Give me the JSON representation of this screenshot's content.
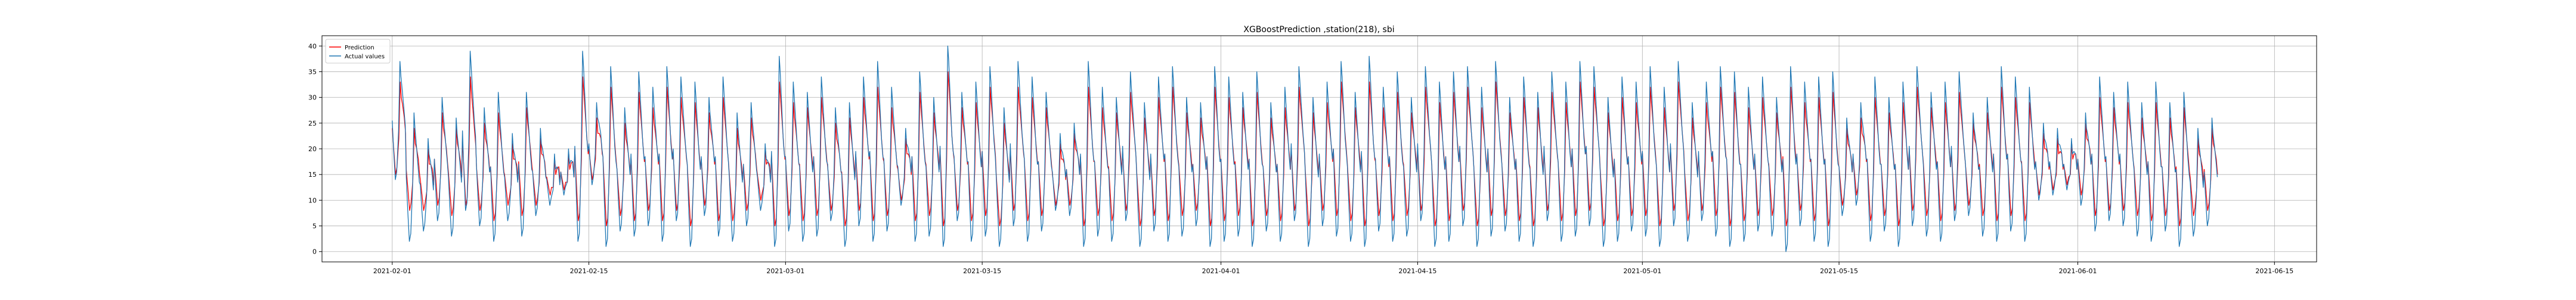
{
  "chart_data": {
    "type": "line",
    "title": "XGBoostPrediction ,station(218), sbi",
    "xlabel": "",
    "ylabel": "",
    "x_axis": {
      "kind": "date",
      "range": [
        "2021-01-27",
        "2021-06-18"
      ],
      "ticks": [
        "2021-02-01",
        "2021-02-15",
        "2021-03-01",
        "2021-03-15",
        "2021-04-01",
        "2021-04-15",
        "2021-05-01",
        "2021-05-15",
        "2021-06-01",
        "2021-06-15"
      ]
    },
    "y_axis": {
      "range": [
        -2,
        42
      ],
      "ticks": [
        0,
        5,
        10,
        15,
        20,
        25,
        30,
        35,
        40
      ]
    },
    "grid": true,
    "legend": {
      "placement": "top-left",
      "entries": [
        {
          "label": "Prediction",
          "color": "#ff0000"
        },
        {
          "label": "Actual values",
          "color": "#1f77b4"
        }
      ]
    },
    "data_start": "2021-02-01",
    "data_end": "2021-06-10",
    "series": [
      {
        "name": "Actual values",
        "color": "#1f77b4",
        "x": [
          "2021-02-01",
          "2021-02-02",
          "2021-02-03",
          "2021-02-04",
          "2021-02-05",
          "2021-02-06",
          "2021-02-07",
          "2021-02-08",
          "2021-02-09",
          "2021-02-10",
          "2021-02-11",
          "2021-02-12",
          "2021-02-13",
          "2021-02-14",
          "2021-02-15",
          "2021-02-16",
          "2021-02-17",
          "2021-02-18",
          "2021-02-19",
          "2021-02-20",
          "2021-02-21",
          "2021-02-22",
          "2021-02-23",
          "2021-02-24",
          "2021-02-25",
          "2021-02-26",
          "2021-02-27",
          "2021-02-28",
          "2021-03-01",
          "2021-03-02",
          "2021-03-03",
          "2021-03-04",
          "2021-03-05",
          "2021-03-06",
          "2021-03-07",
          "2021-03-08",
          "2021-03-09",
          "2021-03-10",
          "2021-03-11",
          "2021-03-12",
          "2021-03-13",
          "2021-03-14",
          "2021-03-15",
          "2021-03-16",
          "2021-03-17",
          "2021-03-18",
          "2021-03-19",
          "2021-03-20",
          "2021-03-21",
          "2021-03-22",
          "2021-03-23",
          "2021-03-24",
          "2021-03-25",
          "2021-03-26",
          "2021-03-27",
          "2021-03-28",
          "2021-03-29",
          "2021-03-30",
          "2021-03-31",
          "2021-04-01",
          "2021-04-02",
          "2021-04-03",
          "2021-04-04",
          "2021-04-05",
          "2021-04-06",
          "2021-04-07",
          "2021-04-08",
          "2021-04-09",
          "2021-04-10",
          "2021-04-11",
          "2021-04-12",
          "2021-04-13",
          "2021-04-14",
          "2021-04-15",
          "2021-04-16",
          "2021-04-17",
          "2021-04-18",
          "2021-04-19",
          "2021-04-20",
          "2021-04-21",
          "2021-04-22",
          "2021-04-23",
          "2021-04-24",
          "2021-04-25",
          "2021-04-26",
          "2021-04-27",
          "2021-04-28",
          "2021-04-29",
          "2021-04-30",
          "2021-05-01",
          "2021-05-02",
          "2021-05-03",
          "2021-05-04",
          "2021-05-05",
          "2021-05-06",
          "2021-05-07",
          "2021-05-08",
          "2021-05-09",
          "2021-05-10",
          "2021-05-11",
          "2021-05-12",
          "2021-05-13",
          "2021-05-14",
          "2021-05-15",
          "2021-05-16",
          "2021-05-17",
          "2021-05-18",
          "2021-05-19",
          "2021-05-20",
          "2021-05-21",
          "2021-05-22",
          "2021-05-23",
          "2021-05-24",
          "2021-05-25",
          "2021-05-26",
          "2021-05-27",
          "2021-05-28",
          "2021-05-29",
          "2021-05-30",
          "2021-05-31",
          "2021-06-01",
          "2021-06-02",
          "2021-06-03",
          "2021-06-04",
          "2021-06-05",
          "2021-06-06",
          "2021-06-07",
          "2021-06-08",
          "2021-06-09",
          "2021-06-10"
        ],
        "low": [
          14,
          2,
          4,
          6,
          3,
          8,
          5,
          2,
          6,
          3,
          7,
          9,
          11,
          2,
          13,
          1,
          4,
          3,
          5,
          2,
          6,
          1,
          7,
          3,
          2,
          5,
          8,
          1,
          4,
          2,
          3,
          6,
          1,
          5,
          2,
          4,
          9,
          2,
          3,
          1,
          6,
          2,
          3,
          1,
          5,
          2,
          4,
          8,
          7,
          1,
          3,
          2,
          6,
          1,
          4,
          2,
          3,
          5,
          1,
          2,
          3,
          1,
          4,
          2,
          6,
          1,
          5,
          3,
          2,
          1,
          4,
          2,
          3,
          6,
          1,
          2,
          5,
          1,
          3,
          4,
          2,
          1,
          6,
          2,
          3,
          5,
          1,
          2,
          4,
          3,
          1,
          5,
          2,
          6,
          3,
          1,
          2,
          4,
          3,
          0,
          5,
          2,
          1,
          7,
          9,
          2,
          4,
          1,
          5,
          3,
          2,
          6,
          7,
          3,
          2,
          4,
          2,
          10,
          11,
          12,
          9,
          4,
          6,
          5,
          3,
          2,
          4,
          1,
          3,
          5
        ],
        "high": [
          37,
          27,
          22,
          30,
          26,
          39,
          28,
          31,
          23,
          31,
          24,
          19,
          20,
          39,
          29,
          36,
          28,
          35,
          32,
          36,
          34,
          33,
          30,
          34,
          27,
          29,
          21,
          38,
          33,
          31,
          34,
          28,
          29,
          34,
          37,
          32,
          24,
          35,
          30,
          40,
          31,
          33,
          36,
          28,
          37,
          34,
          31,
          23,
          25,
          37,
          32,
          30,
          35,
          29,
          34,
          36,
          30,
          29,
          36,
          34,
          31,
          35,
          29,
          32,
          36,
          30,
          33,
          37,
          31,
          38,
          32,
          35,
          30,
          36,
          33,
          35,
          36,
          32,
          37,
          30,
          34,
          31,
          35,
          33,
          37,
          36,
          30,
          34,
          33,
          36,
          32,
          37,
          29,
          33,
          36,
          35,
          32,
          34,
          30,
          36,
          33,
          34,
          35,
          26,
          29,
          34,
          30,
          33,
          36,
          31,
          33,
          35,
          27,
          30,
          36,
          34,
          32,
          25,
          24,
          22,
          27,
          34,
          31,
          33,
          29,
          33,
          29,
          31,
          24,
          26
        ]
      },
      {
        "name": "Prediction",
        "color": "#ff0000",
        "low": [
          15,
          8,
          8,
          9,
          7,
          9,
          8,
          6,
          9,
          7,
          9,
          11,
          12,
          6,
          14,
          5,
          7,
          6,
          8,
          6,
          8,
          5,
          9,
          6,
          6,
          8,
          10,
          5,
          7,
          6,
          7,
          8,
          5,
          8,
          6,
          7,
          10,
          6,
          7,
          5,
          8,
          6,
          7,
          5,
          8,
          6,
          7,
          9,
          9,
          5,
          7,
          6,
          8,
          5,
          7,
          6,
          7,
          8,
          5,
          6,
          7,
          5,
          7,
          6,
          8,
          5,
          8,
          7,
          6,
          5,
          7,
          6,
          7,
          8,
          5,
          6,
          8,
          5,
          7,
          7,
          6,
          5,
          8,
          6,
          7,
          8,
          5,
          6,
          7,
          7,
          5,
          8,
          6,
          8,
          7,
          5,
          6,
          7,
          7,
          5,
          8,
          6,
          5,
          9,
          11,
          6,
          7,
          5,
          8,
          7,
          6,
          8,
          9,
          7,
          6,
          7,
          6,
          11,
          12,
          13,
          11,
          7,
          8,
          8,
          7,
          6,
          7,
          5,
          7,
          8
        ],
        "high": [
          33,
          24,
          20,
          27,
          24,
          34,
          25,
          27,
          21,
          28,
          22,
          18,
          19,
          34,
          26,
          32,
          25,
          31,
          28,
          32,
          30,
          29,
          27,
          30,
          24,
          26,
          20,
          33,
          29,
          28,
          30,
          25,
          26,
          30,
          32,
          28,
          22,
          31,
          27,
          35,
          28,
          29,
          32,
          25,
          32,
          30,
          28,
          21,
          23,
          32,
          28,
          27,
          31,
          26,
          30,
          32,
          27,
          26,
          32,
          30,
          28,
          31,
          26,
          28,
          32,
          27,
          29,
          33,
          28,
          33,
          28,
          31,
          27,
          32,
          29,
          31,
          32,
          28,
          33,
          27,
          30,
          28,
          31,
          29,
          33,
          32,
          27,
          30,
          29,
          32,
          28,
          33,
          26,
          29,
          32,
          31,
          28,
          30,
          27,
          32,
          29,
          30,
          31,
          24,
          26,
          30,
          27,
          29,
          32,
          28,
          29,
          31,
          25,
          27,
          32,
          30,
          29,
          23,
          22,
          21,
          25,
          30,
          28,
          29,
          26,
          29,
          26,
          28,
          22,
          24
        ]
      }
    ]
  }
}
